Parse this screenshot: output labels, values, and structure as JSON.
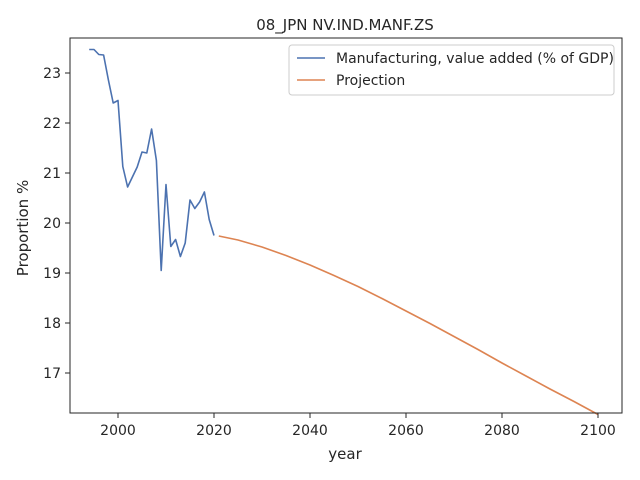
{
  "chart_data": {
    "type": "line",
    "title": "08_JPN NV.IND.MANF.ZS",
    "xlabel": "year",
    "ylabel": "Proportion %",
    "xlim": [
      1990,
      2105
    ],
    "ylim": [
      16.2,
      23.7
    ],
    "xticks": [
      2000,
      2020,
      2040,
      2060,
      2080,
      2100
    ],
    "yticks": [
      17,
      18,
      19,
      20,
      21,
      22,
      23
    ],
    "grid": false,
    "legend_position": "top-right",
    "series": [
      {
        "name": "Manufacturing, value added (% of GDP)",
        "color": "#4c72b0",
        "points": [
          [
            1994,
            23.47
          ],
          [
            1995,
            23.47
          ],
          [
            1996,
            23.37
          ],
          [
            1997,
            23.36
          ],
          [
            1998,
            22.86
          ],
          [
            1999,
            22.4
          ],
          [
            2000,
            22.45
          ],
          [
            2001,
            21.13
          ],
          [
            2002,
            20.72
          ],
          [
            2003,
            20.92
          ],
          [
            2004,
            21.12
          ],
          [
            2005,
            21.42
          ],
          [
            2006,
            21.4
          ],
          [
            2007,
            21.88
          ],
          [
            2008,
            21.25
          ],
          [
            2009,
            19.05
          ],
          [
            2010,
            20.77
          ],
          [
            2011,
            19.53
          ],
          [
            2012,
            19.67
          ],
          [
            2013,
            19.33
          ],
          [
            2014,
            19.6
          ],
          [
            2015,
            20.46
          ],
          [
            2016,
            20.29
          ],
          [
            2017,
            20.42
          ],
          [
            2018,
            20.62
          ],
          [
            2019,
            20.07
          ],
          [
            2020,
            19.75
          ]
        ]
      },
      {
        "name": "Projection",
        "color": "#dd8452",
        "points": [
          [
            2021,
            19.74
          ],
          [
            2025,
            19.66
          ],
          [
            2030,
            19.52
          ],
          [
            2035,
            19.35
          ],
          [
            2040,
            19.16
          ],
          [
            2045,
            18.95
          ],
          [
            2050,
            18.73
          ],
          [
            2055,
            18.49
          ],
          [
            2060,
            18.24
          ],
          [
            2065,
            17.99
          ],
          [
            2070,
            17.73
          ],
          [
            2075,
            17.47
          ],
          [
            2080,
            17.2
          ],
          [
            2085,
            16.94
          ],
          [
            2090,
            16.68
          ],
          [
            2095,
            16.43
          ],
          [
            2100,
            16.17
          ]
        ]
      }
    ]
  }
}
